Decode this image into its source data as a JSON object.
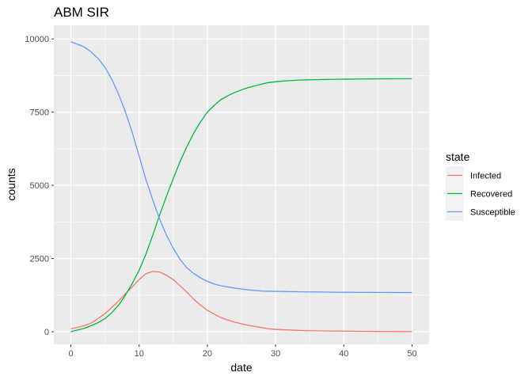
{
  "chart_data": {
    "type": "line",
    "title": "ABM SIR",
    "xlabel": "date",
    "ylabel": "counts",
    "xlim": [
      -2.5,
      52.5
    ],
    "ylim": [
      -432,
      10465
    ],
    "x_ticks": [
      0,
      10,
      20,
      30,
      40,
      50
    ],
    "x_tick_labels": [
      "0",
      "10",
      "20",
      "30",
      "40",
      "50"
    ],
    "y_ticks": [
      0,
      2500,
      5000,
      7500,
      10000
    ],
    "y_tick_labels": [
      "0",
      "2500",
      "5000",
      "7500",
      "10000"
    ],
    "grid": true,
    "legend_title": "state",
    "legend_position": "right",
    "background": "#ebebeb",
    "x": [
      0,
      1,
      2,
      3,
      4,
      5,
      6,
      7,
      8,
      9,
      10,
      11,
      12,
      13,
      14,
      15,
      16,
      17,
      18,
      19,
      20,
      21,
      22,
      23,
      24,
      25,
      26,
      27,
      28,
      29,
      30,
      31,
      32,
      33,
      34,
      35,
      36,
      37,
      38,
      39,
      40,
      41,
      42,
      43,
      44,
      45,
      46,
      47,
      48,
      49,
      50
    ],
    "series": [
      {
        "name": "Infected",
        "color": "#F8766D",
        "values": [
          100,
          150,
          210,
          300,
          450,
          620,
          830,
          1050,
          1300,
          1530,
          1780,
          1980,
          2060,
          2040,
          1930,
          1780,
          1570,
          1350,
          1110,
          910,
          730,
          600,
          480,
          400,
          330,
          270,
          220,
          180,
          140,
          100,
          80,
          70,
          60,
          50,
          40,
          35,
          30,
          28,
          25,
          22,
          20,
          18,
          15,
          12,
          10,
          9,
          8,
          7,
          6,
          5,
          5
        ]
      },
      {
        "name": "Recovered",
        "color": "#00BA38",
        "values": [
          0,
          60,
          120,
          210,
          310,
          450,
          650,
          910,
          1250,
          1650,
          2100,
          2650,
          3300,
          3980,
          4620,
          5230,
          5810,
          6320,
          6780,
          7170,
          7500,
          7730,
          7930,
          8060,
          8170,
          8260,
          8340,
          8400,
          8460,
          8510,
          8540,
          8560,
          8575,
          8590,
          8600,
          8605,
          8610,
          8615,
          8620,
          8622,
          8625,
          8628,
          8630,
          8633,
          8635,
          8637,
          8638,
          8639,
          8640,
          8640,
          8640
        ]
      },
      {
        "name": "Susceptible",
        "color": "#619CFF",
        "values": [
          9900,
          9820,
          9720,
          9550,
          9330,
          9030,
          8620,
          8110,
          7500,
          6800,
          6000,
          5200,
          4500,
          3850,
          3300,
          2850,
          2470,
          2180,
          1990,
          1840,
          1720,
          1630,
          1570,
          1530,
          1490,
          1460,
          1430,
          1410,
          1390,
          1385,
          1380,
          1375,
          1370,
          1367,
          1362,
          1360,
          1358,
          1355,
          1352,
          1350,
          1348,
          1347,
          1346,
          1345,
          1344,
          1343,
          1342,
          1341,
          1340,
          1339,
          1338
        ]
      }
    ]
  }
}
